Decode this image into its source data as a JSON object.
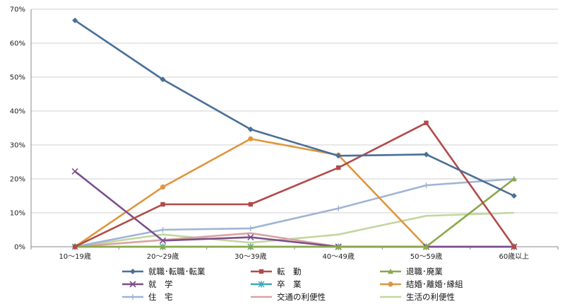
{
  "chart_data": {
    "type": "line",
    "categories": [
      "10～19歳",
      "20～29歳",
      "30～39歳",
      "40～49歳",
      "50～59歳",
      "60歳以上"
    ],
    "y_tick_labels": [
      "0%",
      "10%",
      "20%",
      "30%",
      "40%",
      "50%",
      "60%",
      "70%"
    ],
    "ylim": [
      0,
      70
    ],
    "grid": "horizontal",
    "legend_position": "bottom",
    "series": [
      {
        "name": "就職･転職･転業",
        "color": "#4a6f96",
        "marker": "diamond",
        "values": [
          66.7,
          49.3,
          34.6,
          26.8,
          27.2,
          15.0
        ]
      },
      {
        "name": "転　勤",
        "color": "#b24a4a",
        "marker": "square",
        "values": [
          0,
          12.5,
          12.5,
          23.3,
          36.5,
          0
        ]
      },
      {
        "name": "退職･廃業",
        "color": "#8aa84a",
        "marker": "triangle",
        "values": [
          0,
          0,
          0,
          0,
          0,
          20.0
        ]
      },
      {
        "name": "就　学",
        "color": "#7a4f8c",
        "marker": "x",
        "values": [
          22.2,
          1.8,
          2.8,
          0,
          0,
          0
        ]
      },
      {
        "name": "卒　業",
        "color": "#3aa8b8",
        "marker": "star",
        "values": [
          0,
          0,
          0,
          0,
          0,
          0
        ]
      },
      {
        "name": "結婚･離婚･縁組",
        "color": "#e0953e",
        "marker": "circle",
        "values": [
          0,
          17.6,
          31.8,
          27.0,
          0,
          0
        ]
      },
      {
        "name": "住　宅",
        "color": "#9fb5d4",
        "marker": "plus",
        "values": [
          0,
          5.0,
          5.4,
          11.3,
          18.1,
          20.0
        ]
      },
      {
        "name": "交通の利便性",
        "color": "#d9a3a1",
        "marker": "none",
        "values": [
          0,
          2.0,
          4.0,
          0,
          0,
          0
        ]
      },
      {
        "name": "生活の利便性",
        "color": "#c3d6a0",
        "marker": "none",
        "values": [
          0,
          3.6,
          1.2,
          3.6,
          9.1,
          10.0
        ]
      }
    ]
  }
}
